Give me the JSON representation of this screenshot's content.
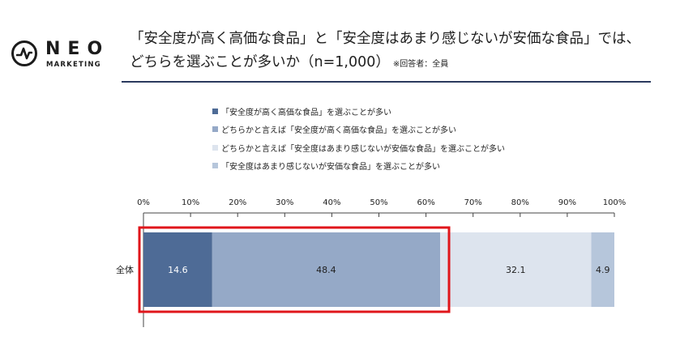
{
  "brand": {
    "logo_name": "NEO",
    "logo_sub": "MARKETING"
  },
  "header": {
    "title_line1": "「安全度が高く高価な食品」と「安全度はあまり感じないが安価な食品」では、",
    "title_line2": "どちらを選ぶことが多いか（n=1,000）",
    "title_note": "※回答者：全員"
  },
  "chart_data": {
    "type": "bar",
    "orientation": "horizontal-stacked-100",
    "categories": [
      "全体"
    ],
    "series": [
      {
        "name": "「安全度が高く高価な食品」を選ぶことが多い",
        "values": [
          14.6
        ],
        "color": "#4e6b96",
        "label_color": "#ffffff"
      },
      {
        "name": "どちらかと言えば「安全度が高く高価な食品」を選ぶことが多い",
        "values": [
          48.4
        ],
        "color": "#95a9c7",
        "label_color": "#1f1f1f"
      },
      {
        "name": "どちらかと言えば「安全度はあまり感じないが安価な食品」を選ぶことが多い",
        "values": [
          32.1
        ],
        "color": "#dde4ee",
        "label_color": "#1f1f1f"
      },
      {
        "name": "「安全度はあまり感じないが安価な食品」を選ぶことが多い",
        "values": [
          4.9
        ],
        "color": "#b6c6db",
        "label_color": "#1f1f1f"
      }
    ],
    "data_labels": [
      "14.6",
      "48.4",
      "32.1",
      "4.9"
    ],
    "xlim": [
      0,
      100
    ],
    "xticks": [
      "0%",
      "10%",
      "20%",
      "30%",
      "40%",
      "50%",
      "60%",
      "70%",
      "80%",
      "90%",
      "100%"
    ],
    "legend_position": "top",
    "grid": false,
    "highlight": {
      "from_series": 0,
      "to_series": 1,
      "color": "#e0161b"
    }
  }
}
